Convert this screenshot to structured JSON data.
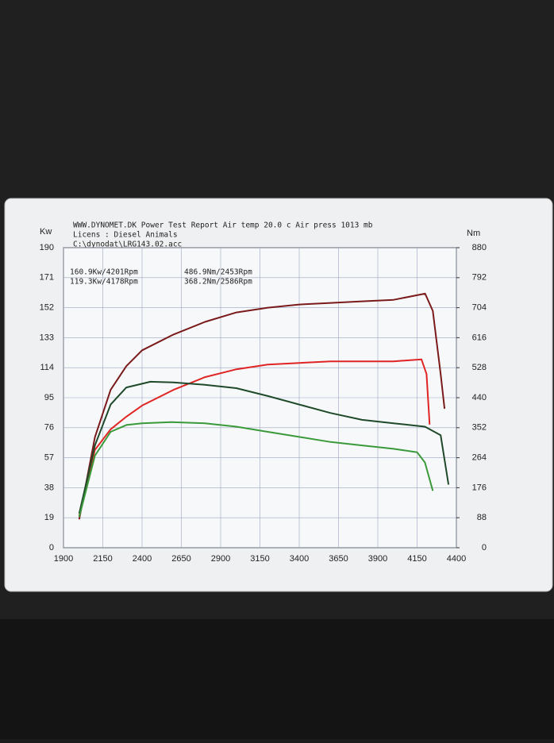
{
  "chart_data": {
    "type": "line",
    "title": "WWW.DYNOMET.DK  Power Test Report   Air temp   20.0 c     Air press   1013 mb",
    "subtitle": "Licens :  Diesel Animals",
    "file": "C:\\dynodat\\LRG143.02.acc",
    "y_label": "Kw",
    "y2_label": "Nm",
    "annotations": [
      {
        "text": "160.9Kw/4201Rpm",
        "color": "#7a1a1a"
      },
      {
        "text": "119.3Kw/4178Rpm",
        "color": "#e02424"
      },
      {
        "text": "486.9Nm/2453Rpm",
        "color": "#1f4a2a"
      },
      {
        "text": "368.2Nm/2586Rpm",
        "color": "#3a9a3a"
      }
    ],
    "xlim": [
      1900,
      4400
    ],
    "xticks": [
      1900,
      2150,
      2400,
      2650,
      2900,
      3150,
      3400,
      3650,
      3900,
      4150,
      4400
    ],
    "ylim": [
      0,
      190
    ],
    "yticks": [
      0,
      19,
      38,
      57,
      76,
      95,
      114,
      133,
      152,
      171,
      190
    ],
    "y2lim": [
      0,
      880
    ],
    "y2ticks": [
      0,
      88,
      176,
      264,
      352,
      440,
      528,
      616,
      704,
      792,
      880
    ],
    "grid": true,
    "series": [
      {
        "color": "#7a1a1a",
        "x": [
          2000,
          2100,
          2200,
          2300,
          2400,
          2600,
          2800,
          3000,
          3200,
          3400,
          3600,
          3800,
          4000,
          4201,
          4250,
          4300,
          4325
        ],
        "values": [
          18,
          70,
          100,
          115,
          125,
          135,
          143,
          149,
          152,
          154,
          155,
          156,
          157,
          160.9,
          150,
          110,
          88
        ]
      },
      {
        "color": "#e02424",
        "x": [
          2000,
          2100,
          2200,
          2300,
          2400,
          2600,
          2800,
          3000,
          3200,
          3400,
          3600,
          3800,
          4000,
          4178,
          4210,
          4230
        ],
        "values": [
          20,
          62,
          75,
          83,
          90,
          100,
          108,
          113,
          116,
          117,
          118,
          118,
          118,
          119.3,
          110,
          78
        ]
      },
      {
        "color": "#1f4a2a",
        "axis": "y2",
        "x": [
          2000,
          2100,
          2200,
          2300,
          2453,
          2600,
          2800,
          3000,
          3200,
          3400,
          3600,
          3800,
          4000,
          4200,
          4300,
          4350
        ],
        "values": [
          100,
          300,
          420,
          470,
          486.9,
          485,
          478,
          468,
          445,
          420,
          395,
          375,
          365,
          355,
          330,
          185
        ]
      },
      {
        "color": "#3a9a3a",
        "axis": "y2",
        "x": [
          2000,
          2100,
          2200,
          2300,
          2400,
          2586,
          2800,
          3000,
          3200,
          3400,
          3600,
          3800,
          4000,
          4150,
          4200,
          4250
        ],
        "values": [
          90,
          270,
          340,
          360,
          365,
          368.2,
          365,
          355,
          340,
          325,
          310,
          300,
          290,
          280,
          250,
          167
        ]
      }
    ]
  }
}
